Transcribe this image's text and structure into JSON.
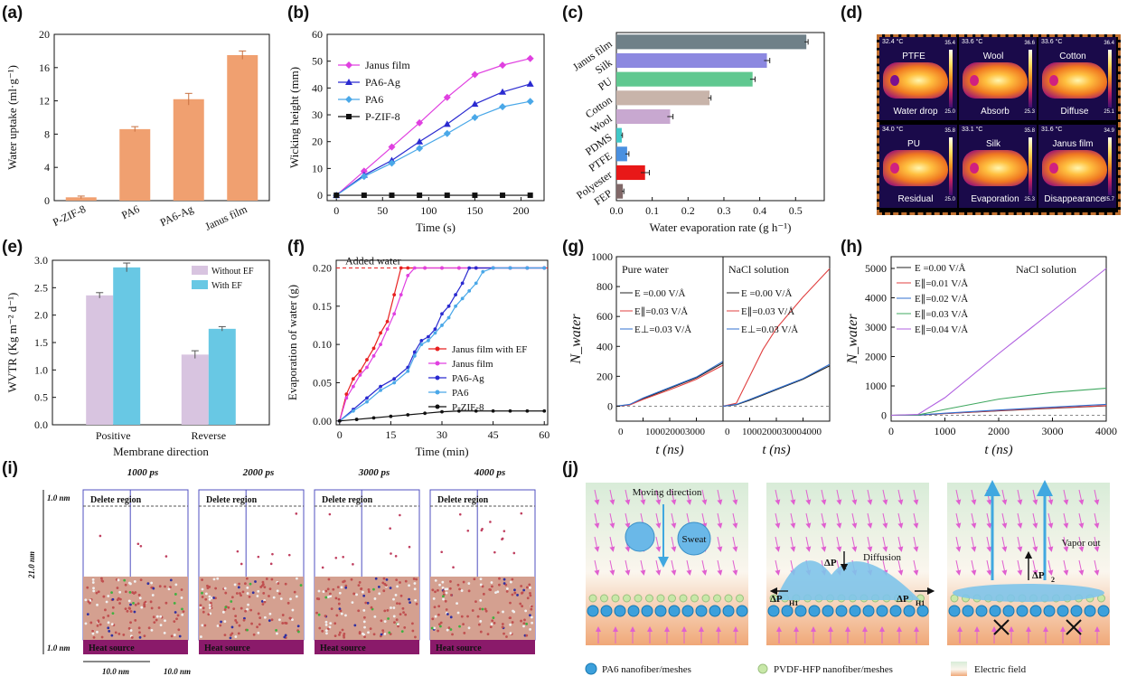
{
  "figure": {
    "panel_labels": [
      "(a)",
      "(b)",
      "(c)",
      "(d)",
      "(e)",
      "(f)",
      "(g)",
      "(h)",
      "(i)",
      "(j)"
    ]
  },
  "chart_data": [
    {
      "id": "a",
      "type": "bar",
      "categories": [
        "P-ZIF-8",
        "PA6",
        "PA6-Ag",
        "Janus film"
      ],
      "values": [
        0.4,
        8.6,
        12.2,
        17.5
      ],
      "errors": [
        0.15,
        0.3,
        0.7,
        0.5
      ],
      "ylabel": "Water uptake (ml·g⁻¹)",
      "ylim": [
        0,
        20
      ],
      "yticks": [
        0,
        4,
        8,
        12,
        16,
        20
      ],
      "bar_color": "#f0a070"
    },
    {
      "id": "b",
      "type": "line",
      "xlabel": "Time (s)",
      "ylabel": "Wicking height (mm)",
      "xlim": [
        -10,
        225
      ],
      "ylim": [
        -2,
        60
      ],
      "xticks": [
        0,
        50,
        100,
        150,
        200
      ],
      "yticks": [
        0,
        10,
        20,
        30,
        40,
        50,
        60
      ],
      "legend_position": "top-left",
      "series": [
        {
          "name": "Janus film",
          "color": "#e040e0",
          "marker": "diamond",
          "x": [
            0,
            30,
            60,
            90,
            120,
            150,
            180,
            210
          ],
          "values": [
            0,
            9,
            18,
            27,
            36.5,
            45,
            48.5,
            51
          ]
        },
        {
          "name": "PA6-Ag",
          "color": "#2a2ad0",
          "marker": "triangle",
          "x": [
            0,
            30,
            60,
            90,
            120,
            150,
            180,
            210
          ],
          "values": [
            0,
            7.5,
            13,
            20,
            26.5,
            34,
            38.5,
            41.5
          ]
        },
        {
          "name": "PA6",
          "color": "#4aa8e8",
          "marker": "diamond",
          "x": [
            0,
            30,
            60,
            90,
            120,
            150,
            180,
            210
          ],
          "values": [
            0,
            7,
            12,
            17.5,
            23,
            29,
            33,
            35
          ]
        },
        {
          "name": "P-ZIF-8",
          "color": "#111111",
          "marker": "square",
          "x": [
            0,
            30,
            60,
            90,
            120,
            150,
            180,
            210
          ],
          "values": [
            0,
            0,
            0,
            0,
            0,
            0,
            0,
            0
          ]
        }
      ]
    },
    {
      "id": "c",
      "type": "bar",
      "orientation": "horizontal",
      "categories": [
        "Janus film",
        "Silk",
        "PU",
        "Cotton",
        "Wool",
        "PDMS",
        "PTFE",
        "Polyester",
        "FEP"
      ],
      "values": [
        0.53,
        0.42,
        0.38,
        0.26,
        0.15,
        0.015,
        0.03,
        0.08,
        0.018
      ],
      "errors": [
        0.005,
        0.008,
        0.007,
        0.004,
        0.008,
        0.002,
        0.005,
        0.012,
        0.003
      ],
      "colors": [
        "#6f8088",
        "#8c88e0",
        "#60c890",
        "#c8b4aa",
        "#c8a8d0",
        "#40c8c8",
        "#4a90e0",
        "#e81818",
        "#806868"
      ],
      "xlabel": "Water evaporation rate (g h⁻¹)",
      "xlim": [
        0,
        0.58
      ],
      "xticks": [
        0.0,
        0.1,
        0.2,
        0.3,
        0.4,
        0.5
      ]
    },
    {
      "id": "e",
      "type": "bar",
      "categories": [
        "Positive",
        "Reverse"
      ],
      "series": [
        {
          "name": "Without EF",
          "values": [
            2.36,
            1.28
          ],
          "errors": [
            0.05,
            0.07
          ]
        },
        {
          "name": "With EF",
          "values": [
            2.87,
            1.75
          ],
          "errors": [
            0.08,
            0.04
          ]
        }
      ],
      "xlabel": "Membrane direction",
      "ylabel": "WVTR (Kg m⁻² d⁻¹)",
      "ylim": [
        0,
        3.0
      ],
      "yticks": [
        0.0,
        0.5,
        1.0,
        1.5,
        2.0,
        2.5,
        3.0
      ],
      "legend_position": "top-right",
      "colors": [
        "#d8c4e0",
        "#68c8e4"
      ]
    },
    {
      "id": "f",
      "type": "line",
      "xlabel": "Time (min)",
      "ylabel": "Evaporation of water (g)",
      "xlim": [
        -1,
        61
      ],
      "ylim": [
        -0.005,
        0.21
      ],
      "xticks": [
        0,
        15,
        30,
        45,
        60
      ],
      "yticks": [
        0.0,
        0.05,
        0.1,
        0.15,
        0.2
      ],
      "annotation": "Added water",
      "annotation_y": 0.2,
      "legend_position": "bottom-right",
      "series": [
        {
          "name": "Janus film with EF",
          "color": "#e82020",
          "x": [
            0,
            2,
            4,
            6,
            8,
            10,
            12,
            14,
            16,
            18,
            20,
            25,
            30,
            35,
            40,
            45,
            50,
            55,
            60
          ],
          "values": [
            0,
            0.035,
            0.055,
            0.065,
            0.08,
            0.095,
            0.115,
            0.13,
            0.165,
            0.2,
            0.2,
            0.2,
            0.2,
            0.2,
            0.2,
            0.2,
            0.2,
            0.2,
            0.2
          ]
        },
        {
          "name": "Janus film",
          "color": "#e040e0",
          "x": [
            0,
            2,
            4,
            6,
            8,
            10,
            12,
            14,
            16,
            18,
            20,
            22,
            25,
            30,
            35,
            40,
            45,
            50,
            55,
            60
          ],
          "values": [
            0,
            0.03,
            0.045,
            0.06,
            0.07,
            0.085,
            0.1,
            0.12,
            0.14,
            0.165,
            0.19,
            0.2,
            0.2,
            0.2,
            0.2,
            0.2,
            0.2,
            0.2,
            0.2,
            0.2
          ]
        },
        {
          "name": "PA6-Ag",
          "color": "#2a2ad0",
          "x": [
            0,
            4,
            8,
            12,
            16,
            20,
            22,
            24,
            26,
            28,
            30,
            32,
            34,
            36,
            38,
            40,
            45,
            50,
            55,
            60
          ],
          "values": [
            0,
            0.015,
            0.03,
            0.045,
            0.055,
            0.07,
            0.09,
            0.105,
            0.11,
            0.12,
            0.14,
            0.15,
            0.165,
            0.18,
            0.2,
            0.2,
            0.2,
            0.2,
            0.2,
            0.2
          ]
        },
        {
          "name": "PA6",
          "color": "#4aa8e8",
          "x": [
            0,
            4,
            8,
            12,
            16,
            20,
            22,
            24,
            26,
            28,
            30,
            32,
            34,
            36,
            38,
            40,
            42,
            45,
            50,
            55,
            60
          ],
          "values": [
            0,
            0.013,
            0.025,
            0.04,
            0.05,
            0.065,
            0.085,
            0.1,
            0.105,
            0.115,
            0.125,
            0.135,
            0.15,
            0.16,
            0.17,
            0.18,
            0.195,
            0.2,
            0.2,
            0.2,
            0.2
          ]
        },
        {
          "name": "P-ZIF-8",
          "color": "#111111",
          "x": [
            0,
            5,
            10,
            15,
            20,
            25,
            30,
            35,
            40,
            45,
            50,
            55,
            60
          ],
          "values": [
            0,
            0.002,
            0.004,
            0.006,
            0.008,
            0.01,
            0.012,
            0.013,
            0.013,
            0.013,
            0.013,
            0.013,
            0.013
          ]
        }
      ]
    },
    {
      "id": "g",
      "type": "line",
      "xlabel": "t (ns)",
      "ylabel": "N_water",
      "ylim": [
        -100,
        1000
      ],
      "yticks": [
        0,
        200,
        400,
        600,
        800,
        1000
      ],
      "xlim": [
        0,
        4000
      ],
      "xticks_label": [
        "0",
        "1000",
        "2000",
        "3000",
        "4000"
      ],
      "subplots": [
        {
          "title": "Pure water",
          "series": [
            {
              "name": "E =0.00 V/Å",
              "color": "#222222",
              "x": [
                0,
                500,
                1000,
                2000,
                3000,
                4000
              ],
              "values": [
                0,
                10,
                50,
                120,
                190,
                290
              ]
            },
            {
              "name": "E∥=0.03 V/Å",
              "color": "#e04040",
              "x": [
                0,
                500,
                1000,
                2000,
                3000,
                4000
              ],
              "values": [
                0,
                8,
                45,
                110,
                180,
                275
              ]
            },
            {
              "name": "E⊥=0.03 V/Å",
              "color": "#3070d0",
              "x": [
                0,
                500,
                1000,
                2000,
                3000,
                4000
              ],
              "values": [
                0,
                12,
                55,
                125,
                195,
                300
              ]
            }
          ]
        },
        {
          "title": "NaCl solution",
          "series": [
            {
              "name": "E =0.00 V/Å",
              "color": "#222222",
              "x": [
                0,
                500,
                1000,
                2000,
                3000,
                4000
              ],
              "values": [
                0,
                10,
                40,
                110,
                180,
                270
              ]
            },
            {
              "name": "E∥=0.03 V/Å",
              "color": "#e04040",
              "x": [
                0,
                500,
                1000,
                1500,
                2000,
                3000,
                4000
              ],
              "values": [
                0,
                20,
                200,
                380,
                520,
                730,
                920
              ]
            },
            {
              "name": "E⊥=0.03 V/Å",
              "color": "#3070d0",
              "x": [
                0,
                500,
                1000,
                2000,
                3000,
                4000
              ],
              "values": [
                0,
                12,
                45,
                115,
                185,
                280
              ]
            }
          ]
        }
      ]
    },
    {
      "id": "h",
      "type": "line",
      "title": "NaCl solution",
      "xlabel": "t (ns)",
      "ylabel": "N_water",
      "xlim": [
        0,
        4000
      ],
      "ylim": [
        -200,
        5400
      ],
      "xticks": [
        0,
        1000,
        2000,
        3000,
        4000
      ],
      "yticks": [
        0,
        1000,
        2000,
        3000,
        4000,
        5000
      ],
      "legend_position": "top-left",
      "series": [
        {
          "name": "E =0.00 V/Å",
          "color": "#222222",
          "x": [
            0,
            500,
            1000,
            2000,
            3000,
            4000
          ],
          "values": [
            0,
            5,
            60,
            150,
            240,
            320
          ]
        },
        {
          "name": "E∥=0.01 V/Å",
          "color": "#e04040",
          "x": [
            0,
            500,
            1000,
            2000,
            3000,
            4000
          ],
          "values": [
            0,
            5,
            60,
            160,
            250,
            330
          ]
        },
        {
          "name": "E∥=0.02 V/Å",
          "color": "#3070d0",
          "x": [
            0,
            500,
            1000,
            2000,
            3000,
            4000
          ],
          "values": [
            0,
            5,
            70,
            180,
            280,
            370
          ]
        },
        {
          "name": "E∥=0.03 V/Å",
          "color": "#40a860",
          "x": [
            0,
            500,
            1000,
            2000,
            3000,
            4000
          ],
          "values": [
            0,
            10,
            200,
            550,
            780,
            920
          ]
        },
        {
          "name": "E∥=0.04 V/Å",
          "color": "#b060e0",
          "x": [
            0,
            500,
            1000,
            2000,
            3000,
            4000
          ],
          "values": [
            0,
            30,
            600,
            2100,
            3550,
            5000
          ]
        }
      ]
    }
  ],
  "panel_d": {
    "tiles": [
      {
        "temp": "32.4 °C",
        "top": "PTFE",
        "bottom": "Water drop",
        "scale_max": "35.4",
        "scale_min": "25.0"
      },
      {
        "temp": "33.6 °C",
        "top": "Wool",
        "bottom": "Absorb",
        "scale_max": "36.6",
        "scale_min": "25.3"
      },
      {
        "temp": "33.6 °C",
        "top": "Cotton",
        "bottom": "Diffuse",
        "scale_max": "36.4",
        "scale_min": "25.1"
      },
      {
        "temp": "34.0 °C",
        "top": "PU",
        "bottom": "Residual",
        "scale_max": "35.8",
        "scale_min": "25.0"
      },
      {
        "temp": "33.1 °C",
        "top": "Silk",
        "bottom": "Evaporation",
        "scale_max": "35.8",
        "scale_min": "25.3"
      },
      {
        "temp": "31.6 °C",
        "top": "Janus film",
        "bottom": "Disappearance",
        "scale_max": "34.9",
        "scale_min": "25.7"
      }
    ]
  },
  "panel_i": {
    "snapshots": [
      "1000 ps",
      "2000 ps",
      "3000 ps",
      "4000 ps"
    ],
    "delete_region": "Delete region",
    "heat_source": "Heat source",
    "dim_top": "1.0 nm",
    "dim_height": "21.0 nm",
    "dim_bottom": "1.0 nm",
    "dim_x": "10.0 nm",
    "dim_y": "10.0 nm"
  },
  "panel_j": {
    "moving_direction": "Moving direction",
    "sweat": "Sweat",
    "diffusion": "Diffusion",
    "vapor_out": "Vapor out",
    "dp_h1": "ΔP",
    "dp_h1_sub": "H1",
    "dp_1": "ΔP",
    "dp_1_sub": "1",
    "dp_2": "ΔP",
    "dp_2_sub": "2",
    "legend": [
      "PA6 nanofiber/meshes",
      "PVDF-HFP nanofiber/meshes",
      "Electric field"
    ],
    "colors": {
      "pa6": "#3ca0dc",
      "pvdf": "#c8e8a8",
      "field_top": "#d8ecd8",
      "field_bottom": "#f0a878"
    }
  }
}
